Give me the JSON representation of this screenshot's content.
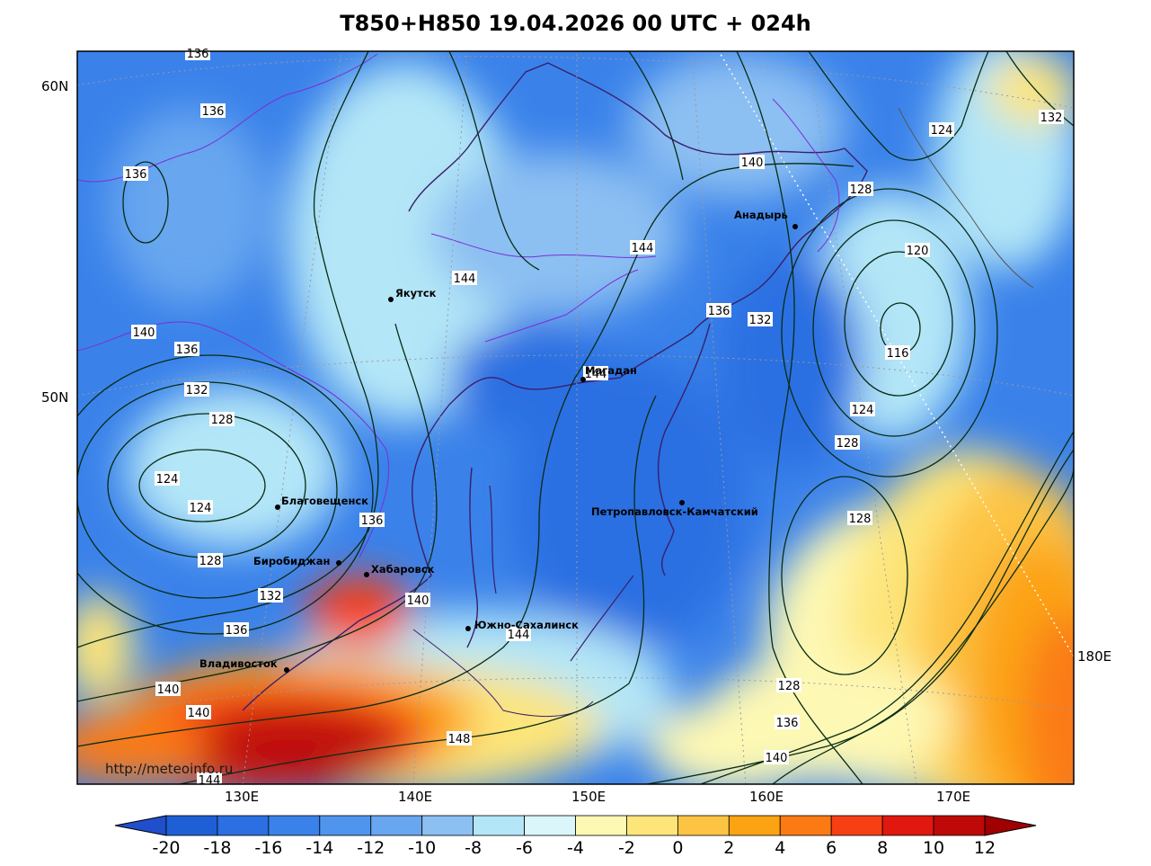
{
  "title": "T850+H850 19.04.2026 00 UTC + 024h",
  "url_watermark": "http://meteoinfo.ru",
  "lat_labels": [
    "60N",
    "50N"
  ],
  "lon_labels": [
    "130E",
    "140E",
    "150E",
    "160E",
    "170E",
    "180E"
  ],
  "cities": [
    {
      "name": "Якутск"
    },
    {
      "name": "Магадан"
    },
    {
      "name": "Анадырь"
    },
    {
      "name": "Благовещенск"
    },
    {
      "name": "Биробиджан"
    },
    {
      "name": "Хабаровск"
    },
    {
      "name": "Петропавловск-Камчатский"
    },
    {
      "name": "Южно-Сахалинск"
    },
    {
      "name": "Владивосток"
    }
  ],
  "contour_labels": [
    "136",
    "136",
    "136",
    "140",
    "136",
    "132",
    "128",
    "124",
    "124",
    "128",
    "132",
    "136",
    "140",
    "140",
    "144",
    "136",
    "140",
    "144",
    "144",
    "148",
    "144",
    "140",
    "140",
    "136",
    "132",
    "128",
    "124",
    "120",
    "116",
    "124",
    "128",
    "128",
    "132",
    "136",
    "140",
    "132",
    "128",
    "144"
  ],
  "colorbar": {
    "ticks": [
      "-20",
      "-18",
      "-16",
      "-14",
      "-12",
      "-10",
      "-8",
      "-6",
      "-4",
      "-2",
      "0",
      "2",
      "4",
      "6",
      "8",
      "10",
      "12"
    ],
    "colors": [
      "#1e5fd6",
      "#2b6fe2",
      "#3a82ea",
      "#4f95ee",
      "#68a6ef",
      "#8cbff2",
      "#b3e6f7",
      "#dbf6fb",
      "#fdf8b4",
      "#fde57a",
      "#fdc444",
      "#fca313",
      "#fb7a13",
      "#f64014",
      "#e0180f",
      "#bf0808"
    ],
    "low_color": "#1f4fcc",
    "high_color": "#a00000"
  }
}
